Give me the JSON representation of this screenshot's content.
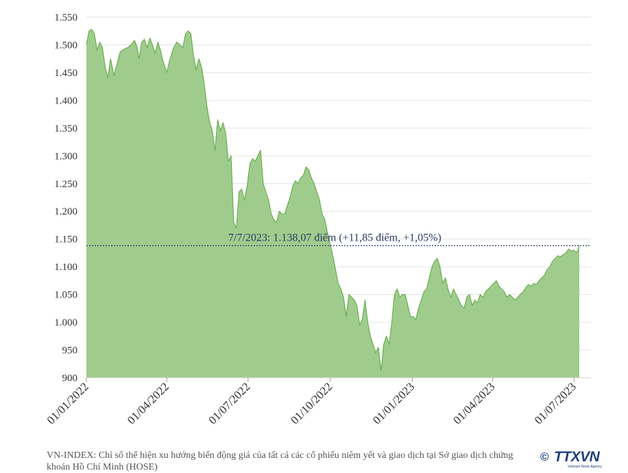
{
  "chart_data": {
    "type": "area",
    "title": "",
    "xlabel": "",
    "ylabel": "",
    "ylim": [
      900,
      1550
    ],
    "y_ticks": [
      {
        "value": 900,
        "label": "900"
      },
      {
        "value": 950,
        "label": "950"
      },
      {
        "value": 1000,
        "label": "1.000"
      },
      {
        "value": 1050,
        "label": "1.050"
      },
      {
        "value": 1100,
        "label": "1.100"
      },
      {
        "value": 1150,
        "label": "1.150"
      },
      {
        "value": 1200,
        "label": "1.200"
      },
      {
        "value": 1250,
        "label": "1.250"
      },
      {
        "value": 1300,
        "label": "1.300"
      },
      {
        "value": 1350,
        "label": "1.350"
      },
      {
        "value": 1400,
        "label": "1.400"
      },
      {
        "value": 1450,
        "label": "1.450"
      },
      {
        "value": 1500,
        "label": "1.500"
      },
      {
        "value": 1550,
        "label": "1.550"
      }
    ],
    "x_ticks": [
      {
        "date": "2022-01-01",
        "label": "01/01/2022"
      },
      {
        "date": "2022-04-01",
        "label": "01/04/2022"
      },
      {
        "date": "2022-07-01",
        "label": "01/07/2022"
      },
      {
        "date": "2022-10-01",
        "label": "01/10/2022"
      },
      {
        "date": "2023-01-01",
        "label": "01/01/2023"
      },
      {
        "date": "2023-04-01",
        "label": "01/04/2023"
      },
      {
        "date": "2023-07-01",
        "label": "01/07/2023"
      }
    ],
    "series": [
      {
        "name": "VN-INDEX",
        "color": "#6aae4f",
        "fill": "#9fcc8d",
        "points": [
          [
            "2022-01-01",
            1500
          ],
          [
            "2022-01-04",
            1525
          ],
          [
            "2022-01-07",
            1528
          ],
          [
            "2022-01-10",
            1520
          ],
          [
            "2022-01-13",
            1490
          ],
          [
            "2022-01-16",
            1505
          ],
          [
            "2022-01-19",
            1495
          ],
          [
            "2022-01-22",
            1460
          ],
          [
            "2022-01-25",
            1440
          ],
          [
            "2022-01-28",
            1475
          ],
          [
            "2022-02-01",
            1445
          ],
          [
            "2022-02-05",
            1470
          ],
          [
            "2022-02-08",
            1488
          ],
          [
            "2022-02-12",
            1492
          ],
          [
            "2022-02-16",
            1495
          ],
          [
            "2022-02-20",
            1500
          ],
          [
            "2022-02-24",
            1508
          ],
          [
            "2022-02-27",
            1495
          ],
          [
            "2022-03-01",
            1475
          ],
          [
            "2022-03-04",
            1505
          ],
          [
            "2022-03-07",
            1510
          ],
          [
            "2022-03-10",
            1495
          ],
          [
            "2022-03-13",
            1512
          ],
          [
            "2022-03-16",
            1500
          ],
          [
            "2022-03-19",
            1485
          ],
          [
            "2022-03-22",
            1505
          ],
          [
            "2022-03-25",
            1490
          ],
          [
            "2022-03-28",
            1470
          ],
          [
            "2022-04-01",
            1450
          ],
          [
            "2022-04-04",
            1470
          ],
          [
            "2022-04-08",
            1492
          ],
          [
            "2022-04-12",
            1505
          ],
          [
            "2022-04-16",
            1500
          ],
          [
            "2022-04-19",
            1495
          ],
          [
            "2022-04-22",
            1520
          ],
          [
            "2022-04-25",
            1525
          ],
          [
            "2022-04-28",
            1520
          ],
          [
            "2022-05-01",
            1480
          ],
          [
            "2022-05-04",
            1455
          ],
          [
            "2022-05-07",
            1475
          ],
          [
            "2022-05-10",
            1460
          ],
          [
            "2022-05-13",
            1430
          ],
          [
            "2022-05-16",
            1390
          ],
          [
            "2022-05-19",
            1360
          ],
          [
            "2022-05-22",
            1345
          ],
          [
            "2022-05-25",
            1310
          ],
          [
            "2022-05-28",
            1365
          ],
          [
            "2022-05-31",
            1345
          ],
          [
            "2022-06-03",
            1360
          ],
          [
            "2022-06-06",
            1340
          ],
          [
            "2022-06-09",
            1290
          ],
          [
            "2022-06-12",
            1300
          ],
          [
            "2022-06-15",
            1180
          ],
          [
            "2022-06-18",
            1170
          ],
          [
            "2022-06-21",
            1235
          ],
          [
            "2022-06-24",
            1240
          ],
          [
            "2022-06-27",
            1220
          ],
          [
            "2022-06-30",
            1245
          ],
          [
            "2022-07-03",
            1285
          ],
          [
            "2022-07-06",
            1295
          ],
          [
            "2022-07-09",
            1290
          ],
          [
            "2022-07-12",
            1300
          ],
          [
            "2022-07-15",
            1310
          ],
          [
            "2022-07-18",
            1250
          ],
          [
            "2022-07-21",
            1235
          ],
          [
            "2022-07-24",
            1220
          ],
          [
            "2022-07-27",
            1195
          ],
          [
            "2022-07-30",
            1185
          ],
          [
            "2022-08-02",
            1180
          ],
          [
            "2022-08-05",
            1200
          ],
          [
            "2022-08-08",
            1195
          ],
          [
            "2022-08-11",
            1195
          ],
          [
            "2022-08-14",
            1210
          ],
          [
            "2022-08-17",
            1225
          ],
          [
            "2022-08-20",
            1245
          ],
          [
            "2022-08-23",
            1255
          ],
          [
            "2022-08-26",
            1250
          ],
          [
            "2022-08-29",
            1260
          ],
          [
            "2022-09-01",
            1265
          ],
          [
            "2022-09-04",
            1280
          ],
          [
            "2022-09-07",
            1275
          ],
          [
            "2022-09-10",
            1260
          ],
          [
            "2022-09-13",
            1250
          ],
          [
            "2022-09-16",
            1235
          ],
          [
            "2022-09-19",
            1220
          ],
          [
            "2022-09-22",
            1195
          ],
          [
            "2022-09-25",
            1185
          ],
          [
            "2022-09-28",
            1160
          ],
          [
            "2022-10-01",
            1140
          ],
          [
            "2022-10-04",
            1120
          ],
          [
            "2022-10-07",
            1095
          ],
          [
            "2022-10-10",
            1070
          ],
          [
            "2022-10-13",
            1060
          ],
          [
            "2022-10-16",
            1045
          ],
          [
            "2022-10-19",
            1010
          ],
          [
            "2022-10-22",
            1050
          ],
          [
            "2022-10-25",
            1045
          ],
          [
            "2022-10-28",
            1040
          ],
          [
            "2022-10-31",
            1030
          ],
          [
            "2022-11-03",
            995
          ],
          [
            "2022-11-06",
            1005
          ],
          [
            "2022-11-09",
            1040
          ],
          [
            "2022-11-12",
            1000
          ],
          [
            "2022-11-15",
            975
          ],
          [
            "2022-11-18",
            960
          ],
          [
            "2022-11-21",
            945
          ],
          [
            "2022-11-24",
            955
          ],
          [
            "2022-11-27",
            912
          ],
          [
            "2022-11-30",
            960
          ],
          [
            "2022-12-03",
            975
          ],
          [
            "2022-12-06",
            960
          ],
          [
            "2022-12-09",
            1000
          ],
          [
            "2022-12-12",
            1050
          ],
          [
            "2022-12-15",
            1060
          ],
          [
            "2022-12-18",
            1045
          ],
          [
            "2022-12-21",
            1050
          ],
          [
            "2022-12-24",
            1050
          ],
          [
            "2022-12-27",
            1030
          ],
          [
            "2022-12-30",
            1010
          ],
          [
            "2023-01-02",
            1010
          ],
          [
            "2023-01-05",
            1005
          ],
          [
            "2023-01-08",
            1025
          ],
          [
            "2023-01-11",
            1040
          ],
          [
            "2023-01-14",
            1055
          ],
          [
            "2023-01-17",
            1060
          ],
          [
            "2023-01-20",
            1080
          ],
          [
            "2023-01-23",
            1100
          ],
          [
            "2023-01-26",
            1110
          ],
          [
            "2023-01-29",
            1115
          ],
          [
            "2023-02-01",
            1100
          ],
          [
            "2023-02-04",
            1070
          ],
          [
            "2023-02-07",
            1080
          ],
          [
            "2023-02-10",
            1060
          ],
          [
            "2023-02-13",
            1045
          ],
          [
            "2023-02-16",
            1060
          ],
          [
            "2023-02-19",
            1050
          ],
          [
            "2023-02-22",
            1040
          ],
          [
            "2023-02-25",
            1030
          ],
          [
            "2023-02-28",
            1025
          ],
          [
            "2023-03-03",
            1045
          ],
          [
            "2023-03-06",
            1050
          ],
          [
            "2023-03-09",
            1030
          ],
          [
            "2023-03-12",
            1040
          ],
          [
            "2023-03-15",
            1035
          ],
          [
            "2023-03-18",
            1050
          ],
          [
            "2023-03-21",
            1045
          ],
          [
            "2023-03-24",
            1055
          ],
          [
            "2023-03-27",
            1060
          ],
          [
            "2023-03-30",
            1065
          ],
          [
            "2023-04-02",
            1070
          ],
          [
            "2023-04-05",
            1075
          ],
          [
            "2023-04-08",
            1065
          ],
          [
            "2023-04-11",
            1060
          ],
          [
            "2023-04-14",
            1055
          ],
          [
            "2023-04-17",
            1045
          ],
          [
            "2023-04-20",
            1050
          ],
          [
            "2023-04-23",
            1045
          ],
          [
            "2023-04-26",
            1040
          ],
          [
            "2023-04-29",
            1045
          ],
          [
            "2023-05-02",
            1050
          ],
          [
            "2023-05-05",
            1055
          ],
          [
            "2023-05-08",
            1062
          ],
          [
            "2023-05-11",
            1068
          ],
          [
            "2023-05-14",
            1065
          ],
          [
            "2023-05-17",
            1070
          ],
          [
            "2023-05-20",
            1068
          ],
          [
            "2023-05-23",
            1075
          ],
          [
            "2023-05-26",
            1080
          ],
          [
            "2023-05-29",
            1085
          ],
          [
            "2023-06-01",
            1095
          ],
          [
            "2023-06-04",
            1100
          ],
          [
            "2023-06-07",
            1110
          ],
          [
            "2023-06-10",
            1115
          ],
          [
            "2023-06-13",
            1120
          ],
          [
            "2023-06-16",
            1118
          ],
          [
            "2023-06-19",
            1122
          ],
          [
            "2023-06-22",
            1125
          ],
          [
            "2023-06-25",
            1132
          ],
          [
            "2023-06-28",
            1128
          ],
          [
            "2023-07-01",
            1130
          ],
          [
            "2023-07-04",
            1125
          ],
          [
            "2023-07-07",
            1138
          ]
        ]
      }
    ],
    "reference_line": {
      "value": 1138.07,
      "style": "dotted",
      "color": "#2b3a66"
    },
    "annotation": "7/7/2023: 1.138,07 điểm (+11,85 điểm, +1,05%)",
    "grid": true
  },
  "footer": {
    "caption": "VN-INDEX: Chỉ số thể hiện xu hướng biến động giá của tất cả các cổ phiếu niêm yết và giao dịch tại Sở giao dịch chứng khoán Hồ Chí Minh (HOSE)"
  },
  "logo": {
    "copyright": "©",
    "name": "TTXVN",
    "subtitle": "Vietnam News Agency"
  }
}
